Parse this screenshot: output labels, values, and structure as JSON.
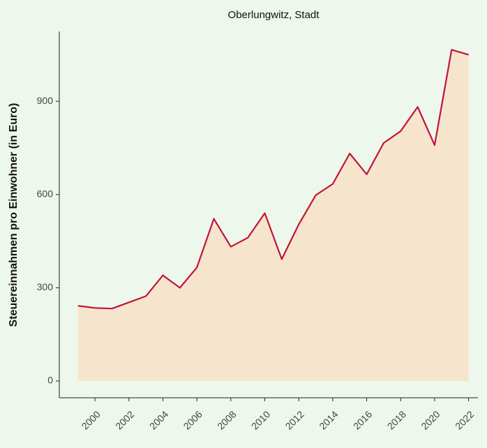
{
  "chart_data": {
    "type": "area",
    "title": "Oberlungwitz, Stadt",
    "ylabel": "Steuereinnahmen pro Einwohner (in Euro)",
    "x": [
      1999,
      2000,
      2001,
      2002,
      2003,
      2004,
      2005,
      2006,
      2007,
      2008,
      2009,
      2010,
      2011,
      2012,
      2013,
      2014,
      2015,
      2016,
      2017,
      2018,
      2019,
      2020,
      2021,
      2022
    ],
    "values": [
      242,
      235,
      233,
      253,
      273,
      340,
      300,
      365,
      522,
      432,
      461,
      540,
      392,
      504,
      598,
      634,
      732,
      665,
      766,
      804,
      882,
      759,
      1066,
      1050
    ],
    "color": "#c0143c",
    "fill": "#f7e4cc",
    "xlim": [
      1997.9,
      2022.55
    ],
    "xticks": [
      2000,
      2002,
      2004,
      2006,
      2008,
      2010,
      2012,
      2014,
      2016,
      2018,
      2020,
      2022
    ],
    "ylim": [
      -54,
      1125
    ],
    "yticks": [
      0,
      300,
      600,
      900
    ],
    "grid": false
  }
}
